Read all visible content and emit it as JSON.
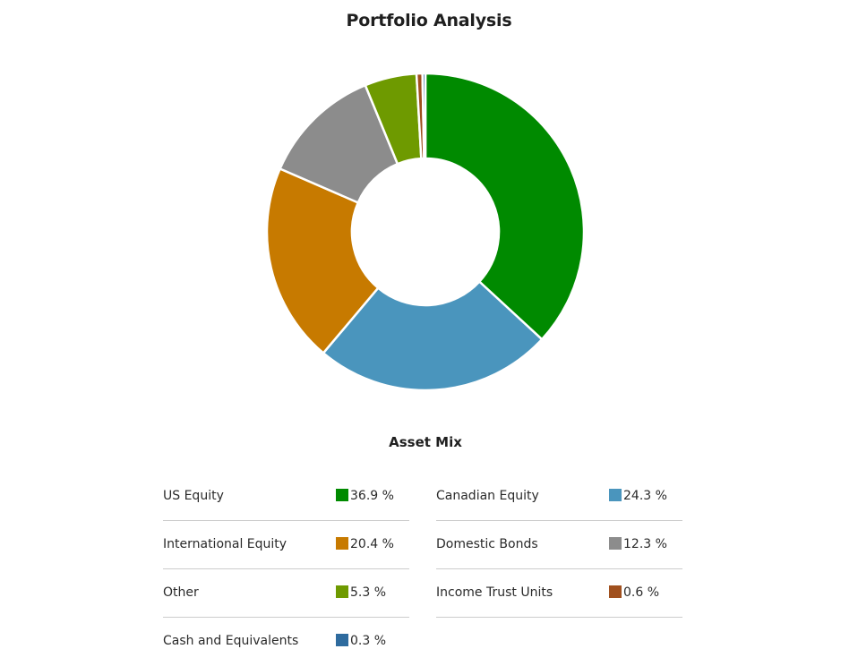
{
  "header": {
    "title": "Portfolio Analysis"
  },
  "asset_mix": {
    "title": "Asset Mix",
    "items": [
      {
        "label": "US Equity",
        "value": "36.9 %",
        "color": "#008a00"
      },
      {
        "label": "Canadian Equity",
        "value": "24.3 %",
        "color": "#4a95bd"
      },
      {
        "label": "International Equity",
        "value": "20.4 %",
        "color": "#c77a00"
      },
      {
        "label": "Domestic Bonds",
        "value": "12.3 %",
        "color": "#8c8c8c"
      },
      {
        "label": "Other",
        "value": "5.3 %",
        "color": "#6e9a00"
      },
      {
        "label": "Income Trust Units",
        "value": "0.6 %",
        "color": "#a0501e"
      },
      {
        "label": "Cash and Equivalents",
        "value": "0.3 %",
        "color": "#2e6b9e"
      }
    ]
  },
  "chart_data": {
    "type": "pie",
    "variant": "donut",
    "title": "Portfolio Analysis",
    "subtitle": "Asset Mix",
    "categories": [
      "US Equity",
      "Canadian Equity",
      "International Equity",
      "Domestic Bonds",
      "Other",
      "Income Trust Units",
      "Cash and Equivalents"
    ],
    "values": [
      36.9,
      24.3,
      20.4,
      12.3,
      5.3,
      0.6,
      0.3
    ],
    "colors": [
      "#008a00",
      "#4a95bd",
      "#c77a00",
      "#8c8c8c",
      "#6e9a00",
      "#a0501e",
      "#2e6b9e"
    ],
    "unit": "%",
    "start_angle": "top, clockwise",
    "legend_position": "bottom, two-column table"
  }
}
